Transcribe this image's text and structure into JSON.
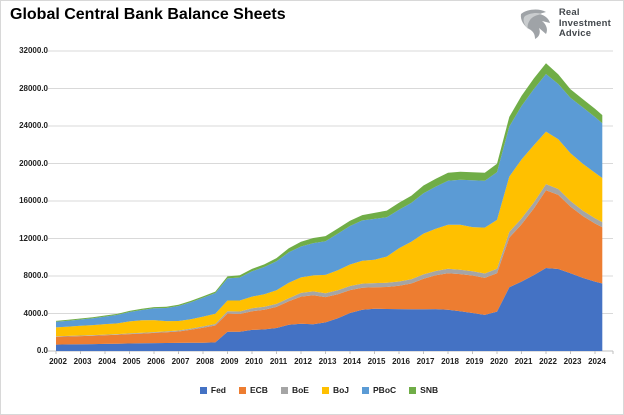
{
  "page": {
    "title": "Global Central Bank Balance Sheets"
  },
  "logo": {
    "lines": [
      "Real",
      "Investment",
      "Advice"
    ]
  },
  "chart_data": {
    "type": "area",
    "stacked": true,
    "title": "Global Central Bank Balance Sheets",
    "xlabel": "",
    "ylabel": "",
    "ylim": [
      0,
      32000
    ],
    "ytick_step": 4000,
    "ytick_labels": [
      "0.0",
      "4000.0",
      "8000.0",
      "12000.0",
      "16000.0",
      "20000.0",
      "24000.0",
      "28000.0",
      "32000.0"
    ],
    "xticks": [
      2002,
      2003,
      2004,
      2005,
      2006,
      2007,
      2008,
      2009,
      2010,
      2011,
      2012,
      2013,
      2014,
      2015,
      2016,
      2017,
      2018,
      2019,
      2020,
      2021,
      2022,
      2023,
      2024
    ],
    "grid": true,
    "legend_position": "bottom",
    "gridline_color": "#d9d9d9",
    "axis_color": "#bfbfbf",
    "x": [
      2002,
      2002.5,
      2003,
      2003.5,
      2004,
      2004.5,
      2005,
      2005.5,
      2006,
      2006.5,
      2007,
      2007.5,
      2008,
      2008.5,
      2009,
      2009.5,
      2010,
      2010.5,
      2011,
      2011.5,
      2012,
      2012.5,
      2013,
      2013.5,
      2014,
      2014.5,
      2015,
      2015.5,
      2016,
      2016.5,
      2017,
      2017.5,
      2018,
      2018.5,
      2019,
      2019.5,
      2020,
      2020.5,
      2021,
      2021.5,
      2022,
      2022.5,
      2023,
      2023.5,
      2024,
      2024.3
    ],
    "series": [
      {
        "name": "Fed",
        "color": "#4472C4",
        "values": [
          680,
          700,
          720,
          740,
          760,
          780,
          800,
          820,
          840,
          855,
          865,
          875,
          890,
          920,
          2050,
          2050,
          2250,
          2300,
          2450,
          2800,
          2900,
          2850,
          3050,
          3500,
          4050,
          4400,
          4500,
          4480,
          4470,
          4450,
          4460,
          4470,
          4400,
          4250,
          4050,
          3850,
          4200,
          6800,
          7400,
          8100,
          8850,
          8750,
          8300,
          7800,
          7400,
          7200
        ]
      },
      {
        "name": "ECB",
        "color": "#ED7D31",
        "values": [
          830,
          850,
          870,
          890,
          920,
          950,
          1000,
          1040,
          1090,
          1140,
          1220,
          1400,
          1600,
          1800,
          1950,
          1900,
          2000,
          2100,
          2250,
          2500,
          2900,
          3100,
          2700,
          2550,
          2450,
          2350,
          2300,
          2350,
          2500,
          2750,
          3250,
          3600,
          3900,
          3950,
          4000,
          3950,
          4100,
          5300,
          6100,
          7100,
          8300,
          7900,
          7100,
          6600,
          6200,
          6000
        ]
      },
      {
        "name": "BoE",
        "color": "#A5A5A5",
        "values": [
          60,
          62,
          65,
          68,
          72,
          76,
          80,
          85,
          90,
          95,
          100,
          110,
          130,
          160,
          240,
          260,
          300,
          310,
          320,
          330,
          400,
          410,
          415,
          420,
          430,
          435,
          440,
          442,
          445,
          450,
          460,
          465,
          470,
          468,
          465,
          462,
          480,
          600,
          630,
          640,
          650,
          630,
          600,
          580,
          560,
          550
        ]
      },
      {
        "name": "BoJ",
        "color": "#FFC000",
        "values": [
          950,
          990,
          1030,
          1070,
          1120,
          1140,
          1280,
          1330,
          1280,
          1100,
          1010,
          1010,
          1050,
          1100,
          1150,
          1180,
          1250,
          1350,
          1450,
          1650,
          1650,
          1700,
          1950,
          2150,
          2300,
          2450,
          2500,
          2800,
          3550,
          4000,
          4350,
          4500,
          4700,
          4800,
          4700,
          4900,
          5200,
          5900,
          6300,
          6100,
          5600,
          5300,
          5100,
          5000,
          4850,
          4700
        ]
      },
      {
        "name": "PBoC",
        "color": "#5B9BD5",
        "values": [
          600,
          630,
          680,
          730,
          800,
          900,
          1000,
          1100,
          1250,
          1400,
          1600,
          1800,
          2000,
          2200,
          2350,
          2450,
          2700,
          2900,
          3100,
          3250,
          3300,
          3450,
          3600,
          3900,
          4100,
          4300,
          4350,
          4200,
          4100,
          4150,
          4300,
          4500,
          4700,
          4800,
          5000,
          5000,
          5100,
          5350,
          5700,
          6000,
          6150,
          5900,
          5900,
          6000,
          5950,
          5850
        ]
      },
      {
        "name": "SNB",
        "color": "#70AD47",
        "values": [
          90,
          95,
          100,
          105,
          110,
          115,
          120,
          125,
          130,
          135,
          140,
          145,
          150,
          160,
          220,
          230,
          260,
          280,
          340,
          440,
          500,
          540,
          545,
          550,
          555,
          560,
          640,
          700,
          740,
          760,
          830,
          845,
          850,
          845,
          850,
          860,
          900,
          1020,
          1080,
          1130,
          1150,
          1020,
          920,
          890,
          880,
          860
        ]
      }
    ]
  }
}
